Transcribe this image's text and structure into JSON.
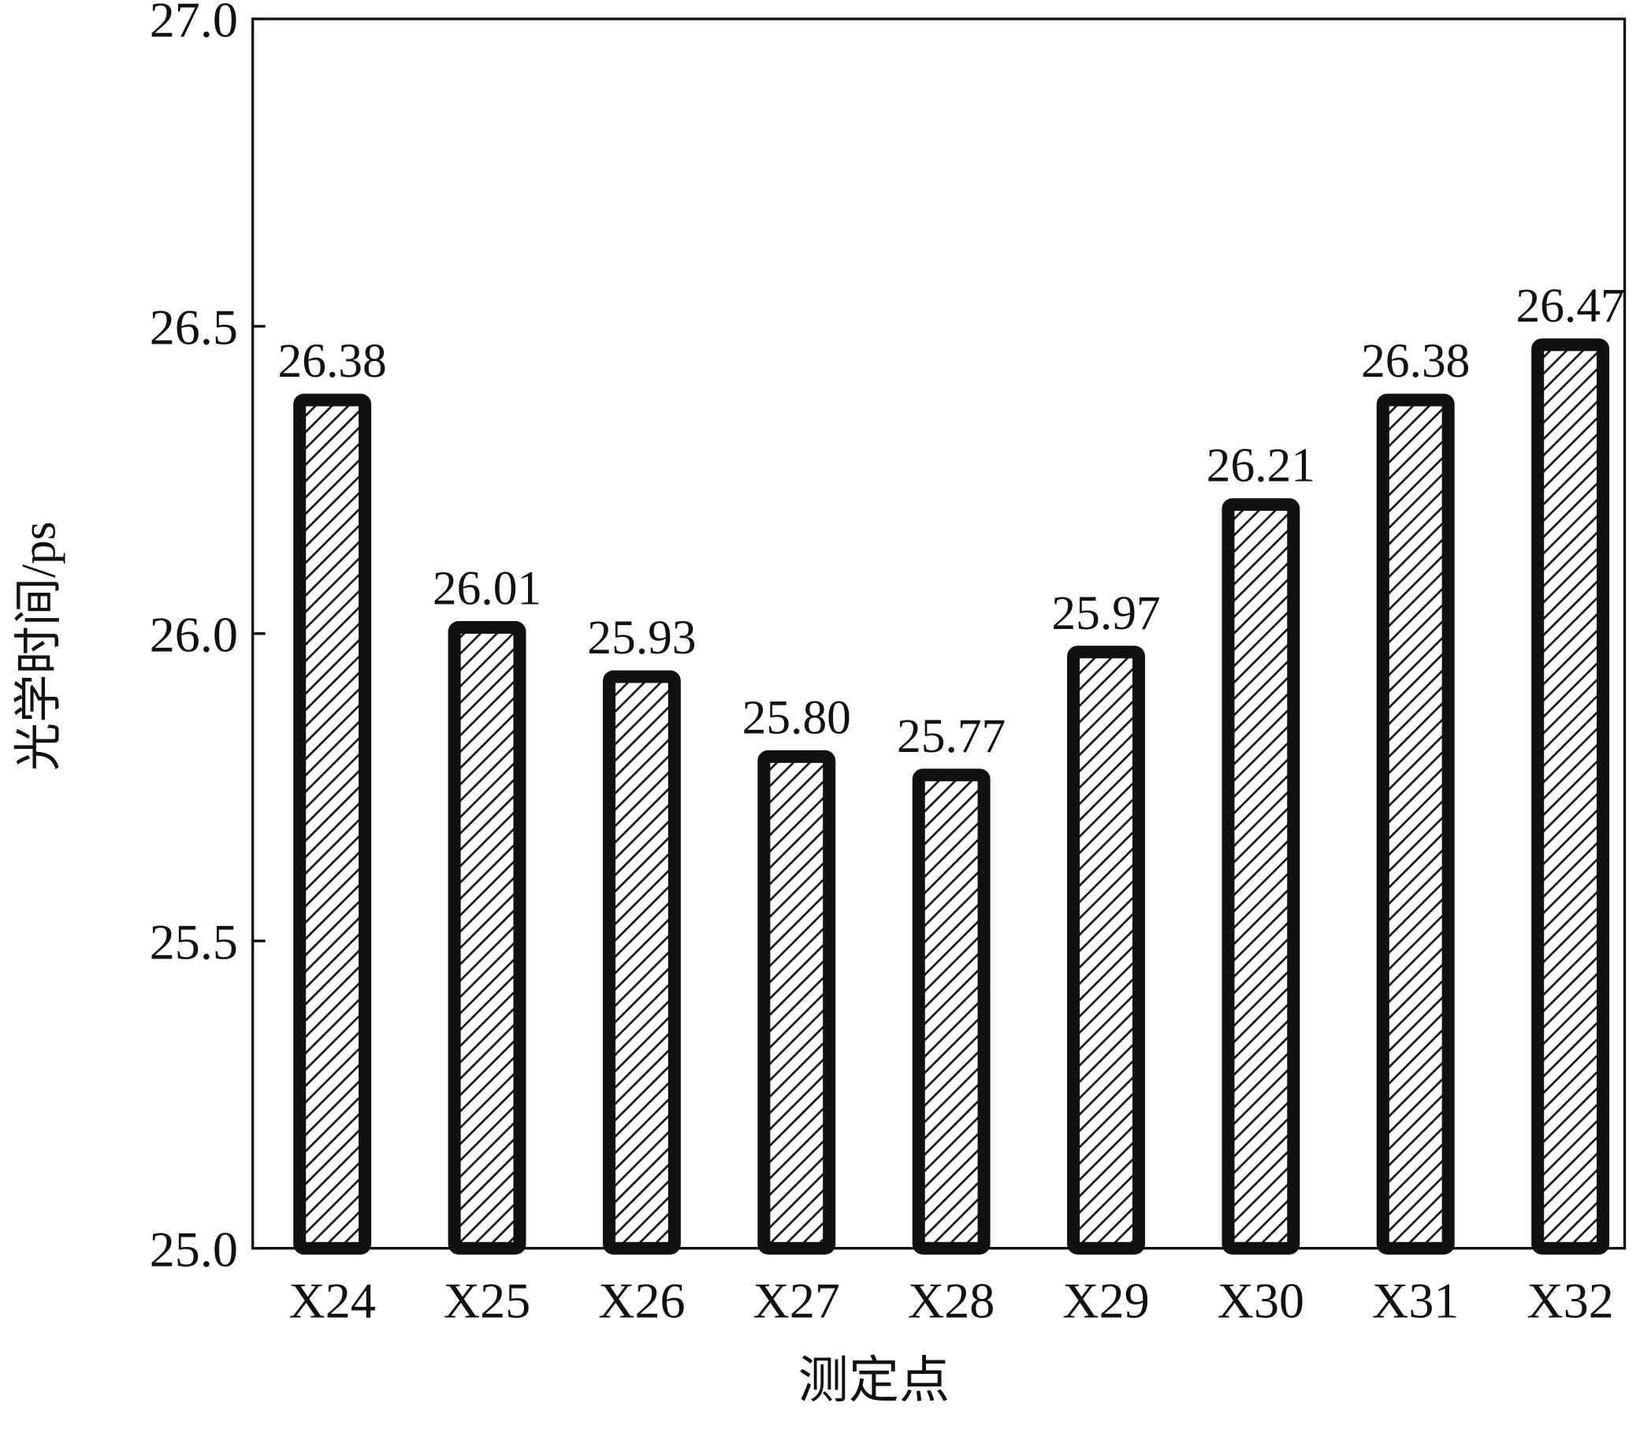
{
  "chart_data": {
    "type": "bar",
    "x_label": "测定点",
    "y_label": "光学时间/ps",
    "categories": [
      "X24",
      "X25",
      "X26",
      "X27",
      "X28",
      "X29",
      "X30",
      "X31",
      "X32"
    ],
    "values": [
      26.38,
      26.01,
      25.93,
      25.8,
      25.77,
      25.97,
      26.21,
      26.38,
      26.47
    ],
    "value_labels": [
      "26.38",
      "26.01",
      "25.93",
      "25.80",
      "25.77",
      "25.97",
      "26.21",
      "26.38",
      "26.47"
    ],
    "color": "#111111",
    "ylim": [
      25,
      27
    ],
    "yticks": [
      {
        "value": 25,
        "label": "25.0"
      },
      {
        "value": 25.5,
        "label": "25.5"
      },
      {
        "value": 26,
        "label": "26.0"
      },
      {
        "value": 26.5,
        "label": "26.5"
      },
      {
        "value": 27,
        "label": "27.0"
      }
    ]
  }
}
